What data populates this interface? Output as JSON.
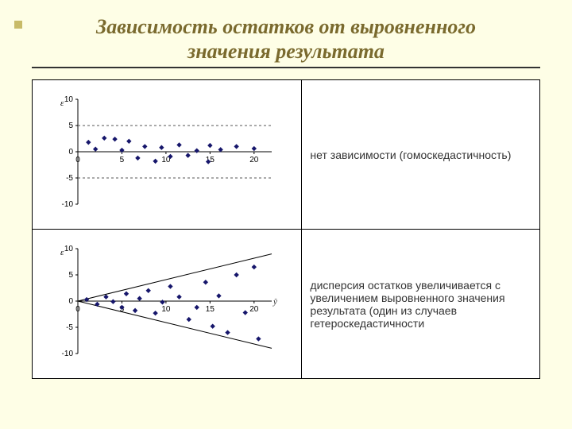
{
  "title_line1": "Зависимость остатков от выровненного",
  "title_line2": "значения результата",
  "row1_desc": "нет зависимости (гомоскедастичность)",
  "row2_desc": "дисперсия остатков увеличивается с увеличением выровненного значения результата (один из случаев гетероскедастичности",
  "colors": {
    "background": "#fefee6",
    "title": "#7a6a2e",
    "rule": "#333333",
    "border": "#000000",
    "axis": "#000000",
    "tick_text": "#000000",
    "dash": "#555555",
    "point": "#16166b",
    "yhat": "#333333"
  },
  "chart1": {
    "type": "scatter",
    "xlim": [
      0,
      22
    ],
    "ylim": [
      -10,
      10
    ],
    "xticks": [
      0,
      5,
      10,
      15,
      20
    ],
    "yticks": [
      -10,
      -5,
      0,
      5,
      10
    ],
    "y_label": "ε",
    "band_dash_y": [
      5,
      -5
    ],
    "yhat_x": 22,
    "points": [
      {
        "x": 1.2,
        "y": 1.8
      },
      {
        "x": 2.0,
        "y": 0.5
      },
      {
        "x": 3.0,
        "y": 2.6
      },
      {
        "x": 4.2,
        "y": 2.4
      },
      {
        "x": 5.0,
        "y": 0.3
      },
      {
        "x": 5.8,
        "y": 2.0
      },
      {
        "x": 6.8,
        "y": -1.2
      },
      {
        "x": 7.6,
        "y": 1.0
      },
      {
        "x": 8.8,
        "y": -1.8
      },
      {
        "x": 9.5,
        "y": 0.8
      },
      {
        "x": 10.5,
        "y": -0.9
      },
      {
        "x": 11.5,
        "y": 1.3
      },
      {
        "x": 12.5,
        "y": -0.7
      },
      {
        "x": 13.5,
        "y": 0.2
      },
      {
        "x": 14.8,
        "y": -1.9
      },
      {
        "x": 15.0,
        "y": 1.2
      },
      {
        "x": 16.2,
        "y": 0.4
      },
      {
        "x": 18.0,
        "y": 1.0
      },
      {
        "x": 20.0,
        "y": 0.6
      }
    ],
    "axis_fontsize": 10,
    "eps_fontsize": 11,
    "marker": "diamond",
    "marker_size": 3.2
  },
  "chart2": {
    "type": "scatter",
    "xlim": [
      0,
      22
    ],
    "ylim": [
      -10,
      10
    ],
    "xticks": [
      0,
      5,
      10,
      15,
      20
    ],
    "yticks": [
      -10,
      -5,
      0,
      5,
      10
    ],
    "y_label": "ε",
    "cone_lines": [
      {
        "x1": 0,
        "y1": 0,
        "x2": 22,
        "y2": 9
      },
      {
        "x1": 0,
        "y1": 0,
        "x2": 22,
        "y2": -9
      }
    ],
    "yhat_x": 22,
    "yhat_symbol": "ŷ",
    "points": [
      {
        "x": 1.0,
        "y": 0.3
      },
      {
        "x": 2.2,
        "y": -0.6
      },
      {
        "x": 3.2,
        "y": 0.8
      },
      {
        "x": 4.0,
        "y": -0.1
      },
      {
        "x": 5.0,
        "y": -1.2
      },
      {
        "x": 5.5,
        "y": 1.4
      },
      {
        "x": 6.5,
        "y": -1.8
      },
      {
        "x": 7.0,
        "y": 0.5
      },
      {
        "x": 8.0,
        "y": 2.0
      },
      {
        "x": 8.8,
        "y": -2.3
      },
      {
        "x": 9.6,
        "y": -0.2
      },
      {
        "x": 10.5,
        "y": 2.8
      },
      {
        "x": 11.5,
        "y": 0.8
      },
      {
        "x": 12.6,
        "y": -3.5
      },
      {
        "x": 13.5,
        "y": -1.2
      },
      {
        "x": 14.5,
        "y": 3.6
      },
      {
        "x": 15.3,
        "y": -4.8
      },
      {
        "x": 16.0,
        "y": 1.0
      },
      {
        "x": 17.0,
        "y": -6.0
      },
      {
        "x": 18.0,
        "y": 5.0
      },
      {
        "x": 19.0,
        "y": -2.2
      },
      {
        "x": 20.0,
        "y": 6.5
      },
      {
        "x": 20.5,
        "y": -7.2
      }
    ],
    "axis_fontsize": 10,
    "eps_fontsize": 11,
    "marker": "diamond",
    "marker_size": 3.2
  }
}
